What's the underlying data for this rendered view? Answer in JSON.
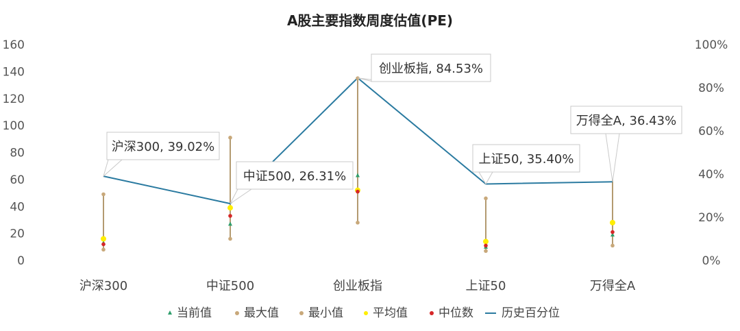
{
  "chart_data": {
    "type": "line",
    "title": "A股主要指数周度估值(PE)",
    "categories": [
      "沪深300",
      "中证500",
      "创业板指",
      "上证50",
      "万得全A"
    ],
    "y_left": {
      "ylim": [
        0,
        160
      ],
      "ticks": [
        "0",
        "20",
        "40",
        "60",
        "80",
        "100",
        "120",
        "140",
        "160"
      ]
    },
    "y_right": {
      "ylim": [
        0,
        1
      ],
      "ticks": [
        "0%",
        "20%",
        "40%",
        "60%",
        "80%",
        "100%"
      ]
    },
    "grid": false,
    "legend_position": "bottom",
    "series": [
      {
        "name": "当前值",
        "axis": "left",
        "marker": "triangle",
        "color": "#2e9e6b",
        "values": [
          13,
          27,
          63,
          10,
          19
        ]
      },
      {
        "name": "最大值",
        "axis": "left",
        "marker": "dot",
        "color": "#c8a87a",
        "values": [
          49,
          91,
          135,
          46,
          74
        ]
      },
      {
        "name": "最小值",
        "axis": "left",
        "marker": "dot",
        "color": "#c8a87a",
        "values": [
          8,
          16,
          28,
          7,
          11
        ]
      },
      {
        "name": "平均值",
        "axis": "left",
        "marker": "dot",
        "color": "#ffee00",
        "values": [
          16,
          39,
          52,
          14,
          28
        ]
      },
      {
        "name": "中位数",
        "axis": "left",
        "marker": "dot",
        "color": "#d62728",
        "values": [
          12,
          33,
          51,
          11,
          21
        ]
      },
      {
        "name": "历史百分位",
        "axis": "right",
        "marker": "line",
        "color": "#2a7aa0",
        "values": [
          0.3902,
          0.2631,
          0.8453,
          0.354,
          0.3643
        ]
      }
    ],
    "annotations": [
      "沪深300, 39.02%",
      "中证500, 26.31%",
      "创业板指, 84.53%",
      "上证50, 35.40%",
      "万得全A, 36.43%"
    ],
    "range_color": "#b39a70"
  }
}
